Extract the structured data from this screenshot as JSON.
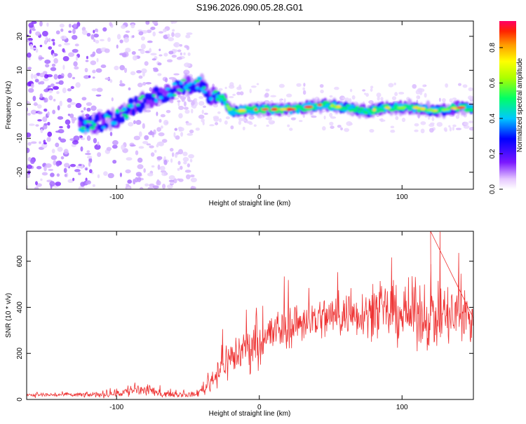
{
  "title": "S196.2026.090.05.28.G01",
  "chart_data": [
    {
      "type": "heatmap",
      "xlabel": "Height of straight line (km)",
      "ylabel": "Frequency (Hz)",
      "xlim": [
        -163,
        150
      ],
      "ylim": [
        -25,
        24.5
      ],
      "xticks": [
        -100,
        0,
        100
      ],
      "yticks": [
        -20,
        -10,
        0,
        10,
        20
      ],
      "colorbar": {
        "label": "Normalized spectral amplitude",
        "range": [
          0,
          0.95
        ],
        "ticks": [
          0.0,
          0.2,
          0.4,
          0.6,
          0.8
        ]
      },
      "ridge_frequency_hz": [
        {
          "x": -120,
          "y": -6
        },
        {
          "x": -110,
          "y": -5
        },
        {
          "x": -100,
          "y": -4
        },
        {
          "x": -90,
          "y": -1
        },
        {
          "x": -80,
          "y": 1
        },
        {
          "x": -70,
          "y": 3
        },
        {
          "x": -60,
          "y": 4
        },
        {
          "x": -50,
          "y": 6
        },
        {
          "x": -40,
          "y": 6
        },
        {
          "x": -35,
          "y": 3
        },
        {
          "x": -25,
          "y": 1.5
        },
        {
          "x": -20,
          "y": -2
        },
        {
          "x": 0,
          "y": -1.5
        },
        {
          "x": 25,
          "y": -1.5
        },
        {
          "x": 45,
          "y": 0
        },
        {
          "x": 60,
          "y": -1
        },
        {
          "x": 75,
          "y": -2
        },
        {
          "x": 90,
          "y": -1
        },
        {
          "x": 110,
          "y": -1
        },
        {
          "x": 125,
          "y": -2
        },
        {
          "x": 140,
          "y": -1
        },
        {
          "x": 150,
          "y": -1
        }
      ],
      "noise_region_km": [
        -163,
        -55
      ]
    },
    {
      "type": "line",
      "xlabel": "Height of straight line (km)",
      "ylabel": "SNR (10 * v/v)",
      "xlim": [
        -163,
        150
      ],
      "ylim": [
        0,
        730
      ],
      "xticks": [
        -100,
        0,
        100
      ],
      "yticks": [
        0,
        200,
        400,
        600
      ],
      "series_color": "#ee3333",
      "envelope": [
        {
          "x": -163,
          "mean": 20,
          "spread": 12
        },
        {
          "x": -120,
          "mean": 20,
          "spread": 12
        },
        {
          "x": -100,
          "mean": 25,
          "spread": 20
        },
        {
          "x": -85,
          "mean": 45,
          "spread": 40
        },
        {
          "x": -70,
          "mean": 25,
          "spread": 15
        },
        {
          "x": -45,
          "mean": 20,
          "spread": 12
        },
        {
          "x": -35,
          "mean": 70,
          "spread": 50
        },
        {
          "x": -25,
          "mean": 160,
          "spread": 90
        },
        {
          "x": -10,
          "mean": 220,
          "spread": 110
        },
        {
          "x": 10,
          "mean": 290,
          "spread": 110
        },
        {
          "x": 30,
          "mean": 340,
          "spread": 100
        },
        {
          "x": 50,
          "mean": 360,
          "spread": 110
        },
        {
          "x": 75,
          "mean": 380,
          "spread": 110
        },
        {
          "x": 100,
          "mean": 375,
          "spread": 150
        },
        {
          "x": 125,
          "mean": 360,
          "spread": 160
        },
        {
          "x": 150,
          "mean": 360,
          "spread": 160
        }
      ],
      "peak": {
        "x": 120,
        "y": 730
      }
    }
  ]
}
